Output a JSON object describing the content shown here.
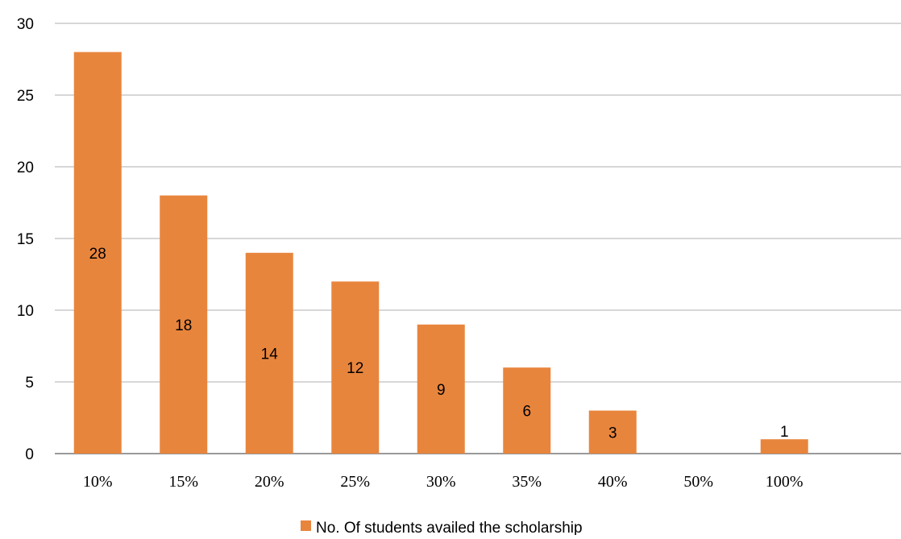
{
  "chart_data": {
    "type": "bar",
    "categories": [
      "10%",
      "15%",
      "20%",
      "25%",
      "30%",
      "35%",
      "40%",
      "50%",
      "100%"
    ],
    "series": [
      {
        "name": "No. Of students availed the scholarship",
        "values": [
          28,
          18,
          14,
          12,
          9,
          6,
          3,
          0,
          1
        ],
        "labels": [
          "28",
          "18",
          "14",
          "12",
          "9",
          "6",
          "3",
          "",
          "1"
        ]
      }
    ],
    "y_ticks": [
      "0",
      "5",
      "10",
      "15",
      "20",
      "25",
      "30"
    ],
    "ylim": [
      0,
      30
    ],
    "grid": true,
    "legend_position": "bottom",
    "colors": {
      "bar": "#E8853D",
      "grid": "#BFBFBF",
      "axis": "#8C8C8C"
    }
  }
}
